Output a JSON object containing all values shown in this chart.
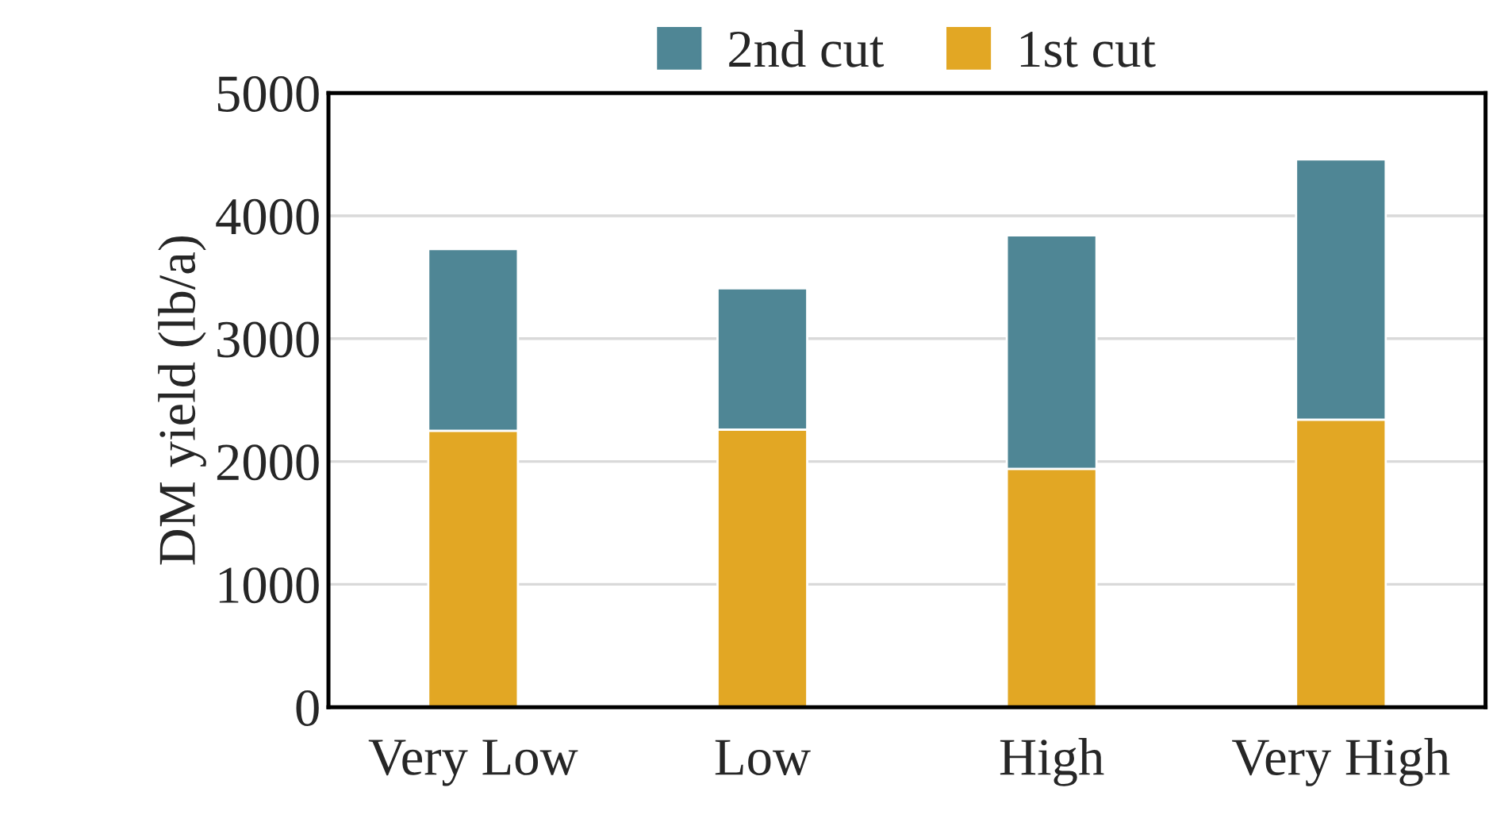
{
  "chart_data": {
    "type": "bar",
    "stacked": true,
    "ylabel": "DM yield (lb/a)",
    "categories": [
      "Very Low",
      "Low",
      "High",
      "Very High"
    ],
    "series": [
      {
        "name": "1st cut",
        "color": "#e2a724",
        "values": [
          2250,
          2260,
          1940,
          2340
        ]
      },
      {
        "name": "2nd cut",
        "color": "#4f8695",
        "values": [
          1480,
          1150,
          1900,
          2120
        ]
      }
    ],
    "ylim": [
      0,
      5000
    ],
    "yticks": [
      0,
      1000,
      2000,
      3000,
      4000,
      5000
    ],
    "grid": "y",
    "legend": "top"
  }
}
